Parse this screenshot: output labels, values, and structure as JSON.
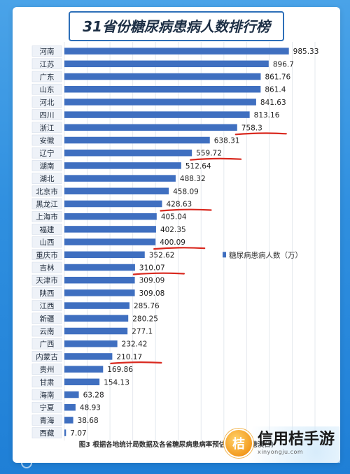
{
  "chart_data": {
    "type": "bar",
    "orientation": "horizontal",
    "title": "31省份糖尿病患病人数排行榜",
    "legend": "糖尿病患病人数（万）",
    "legend_position": "right",
    "categories": [
      "河南",
      "江苏",
      "广东",
      "山东",
      "河北",
      "四川",
      "浙江",
      "安徽",
      "辽宁",
      "湖南",
      "湖北",
      "北京市",
      "黑龙江",
      "上海市",
      "福建",
      "山西",
      "重庆市",
      "吉林",
      "天津市",
      "陕西",
      "江西",
      "新疆",
      "云南",
      "广西",
      "内蒙古",
      "贵州",
      "甘肃",
      "海南",
      "宁夏",
      "青海",
      "西藏"
    ],
    "values": [
      985.33,
      896.7,
      861.76,
      861.4,
      841.63,
      813.16,
      758.3,
      638.31,
      559.72,
      512.64,
      488.32,
      458.09,
      428.63,
      405.04,
      402.35,
      400.09,
      352.62,
      310.07,
      309.09,
      309.08,
      285.76,
      280.25,
      277.1,
      232.42,
      210.17,
      169.86,
      154.13,
      63.28,
      48.93,
      38.68,
      7.07
    ],
    "value_labels": [
      "985.33",
      "896.7",
      "861.76",
      "861.4",
      "841.63",
      "813.16",
      "758.3",
      "638.31",
      "559.72",
      "512.64",
      "488.32",
      "458.09",
      "428.63",
      "405.04",
      "402.35",
      "400.09",
      "352.62",
      "310.07",
      "309.09",
      "309.08",
      "285.76",
      "280.25",
      "277.1",
      "232.42",
      "210.17",
      "169.86",
      "154.13",
      "63.28",
      "48.93",
      "38.68",
      "7.07"
    ],
    "xlim": [
      0,
      1100
    ],
    "grid": true,
    "underlined_values": [
      "758.3",
      "559.72",
      "428.63",
      "400.09",
      "310.07",
      "210.17"
    ],
    "colors": {
      "bar": "#3f6fc0",
      "underline": "#d9281e",
      "label_bg": "#eef2f8",
      "grid": "#e4e8ee"
    }
  },
  "caption": "图3  根据各地统计局数据及各省糖尿病患病率预估 (不包含港澳台)",
  "brand": {
    "name": "信用桔手游",
    "url": "xinyongju.com"
  }
}
